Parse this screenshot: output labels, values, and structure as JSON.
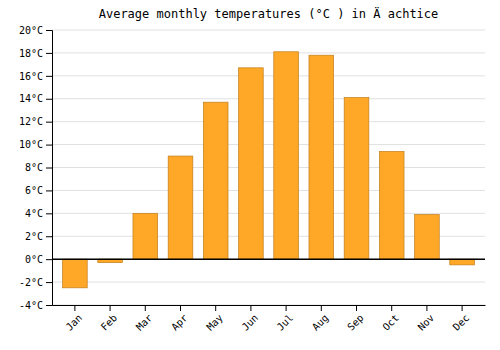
{
  "chart_data": {
    "type": "bar",
    "title": "Average monthly temperatures (°C ) in Ä achtice",
    "categories": [
      "Jan",
      "Feb",
      "Mar",
      "Apr",
      "May",
      "Jun",
      "Jul",
      "Aug",
      "Sep",
      "Oct",
      "Nov",
      "Dec"
    ],
    "values": [
      -2.5,
      -0.3,
      4.0,
      9.0,
      13.7,
      16.7,
      18.1,
      17.8,
      14.1,
      9.4,
      3.9,
      -0.5
    ],
    "color": "#FFA726",
    "ylim": [
      -4,
      20
    ],
    "yticks": [
      {
        "value": -4,
        "label": "-4°C"
      },
      {
        "value": -2,
        "label": "-2°C"
      },
      {
        "value": 0,
        "label": "0°C"
      },
      {
        "value": 2,
        "label": "2°C"
      },
      {
        "value": 4,
        "label": "4°C"
      },
      {
        "value": 6,
        "label": "6°C"
      },
      {
        "value": 8,
        "label": "8°C"
      },
      {
        "value": 10,
        "label": "10°C"
      },
      {
        "value": 12,
        "label": "12°C"
      },
      {
        "value": 14,
        "label": "14°C"
      },
      {
        "value": 16,
        "label": "16°C"
      },
      {
        "value": 18,
        "label": "18°C"
      },
      {
        "value": 20,
        "label": "20°C"
      }
    ],
    "grid": true
  }
}
